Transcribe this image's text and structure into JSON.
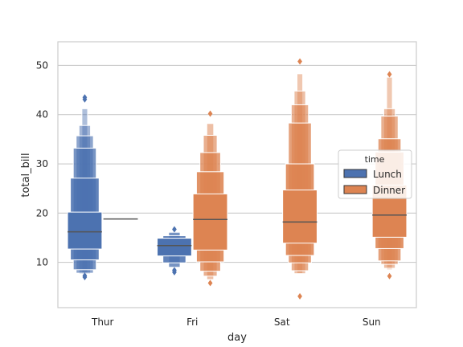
{
  "chart_data": {
    "type": "boxen",
    "xlabel": "day",
    "ylabel": "total_bill",
    "ylim": [
      0.8,
      54.8
    ],
    "yticks": [
      10,
      20,
      30,
      40,
      50
    ],
    "categories": [
      "Thur",
      "Fri",
      "Sat",
      "Sun"
    ],
    "grid": "horizontal",
    "legend": {
      "title": "time",
      "placement": "right",
      "entries": [
        {
          "name": "Lunch",
          "color": "#4c72b0"
        },
        {
          "name": "Dinner",
          "color": "#dd8452"
        }
      ]
    },
    "groups": [
      {
        "category": "Thur",
        "series": "Lunch",
        "color": "#4c72b0",
        "median": 16.2,
        "boxes": [
          [
            12.7,
            20.2
          ],
          [
            10.5,
            27.1
          ],
          [
            8.5,
            33.2
          ],
          [
            7.8,
            35.7
          ],
          [
            7.6,
            37.8
          ],
          [
            7.5,
            41.2
          ]
        ],
        "outliers": [
          7.3,
          7.0,
          43.1,
          43.5
        ]
      },
      {
        "category": "Thur",
        "series": "Dinner",
        "color": "#dd8452",
        "median": 18.8,
        "boxes": [],
        "outliers": []
      },
      {
        "category": "Fri",
        "series": "Lunch",
        "color": "#4c72b0",
        "median": 13.4,
        "boxes": [
          [
            11.3,
            14.9
          ],
          [
            9.9,
            15.4
          ],
          [
            9.0,
            16.1
          ]
        ],
        "outliers": [
          8.4,
          8.0,
          16.7
        ]
      },
      {
        "category": "Fri",
        "series": "Dinner",
        "color": "#dd8452",
        "median": 18.7,
        "boxes": [
          [
            12.5,
            23.9
          ],
          [
            10.1,
            28.4
          ],
          [
            8.2,
            32.3
          ],
          [
            7.2,
            35.8
          ],
          [
            6.5,
            38.2
          ]
        ],
        "outliers": [
          5.8,
          40.2
        ]
      },
      {
        "category": "Sat",
        "series": "Dinner",
        "color": "#dd8452",
        "median": 18.2,
        "boxes": [
          [
            13.9,
            24.7
          ],
          [
            11.4,
            30.0
          ],
          [
            9.9,
            38.3
          ],
          [
            8.3,
            42.0
          ],
          [
            7.7,
            44.8
          ],
          [
            7.7,
            48.3
          ]
        ],
        "outliers": [
          3.1,
          50.8
        ]
      },
      {
        "category": "Sun",
        "series": "Dinner",
        "color": "#dd8452",
        "median": 19.6,
        "boxes": [
          [
            15.1,
            25.7
          ],
          [
            12.8,
            32.4
          ],
          [
            10.3,
            35.1
          ],
          [
            9.6,
            39.7
          ],
          [
            8.8,
            41.2
          ],
          [
            8.5,
            47.6
          ]
        ],
        "outliers": [
          7.2,
          48.2
        ]
      }
    ]
  }
}
